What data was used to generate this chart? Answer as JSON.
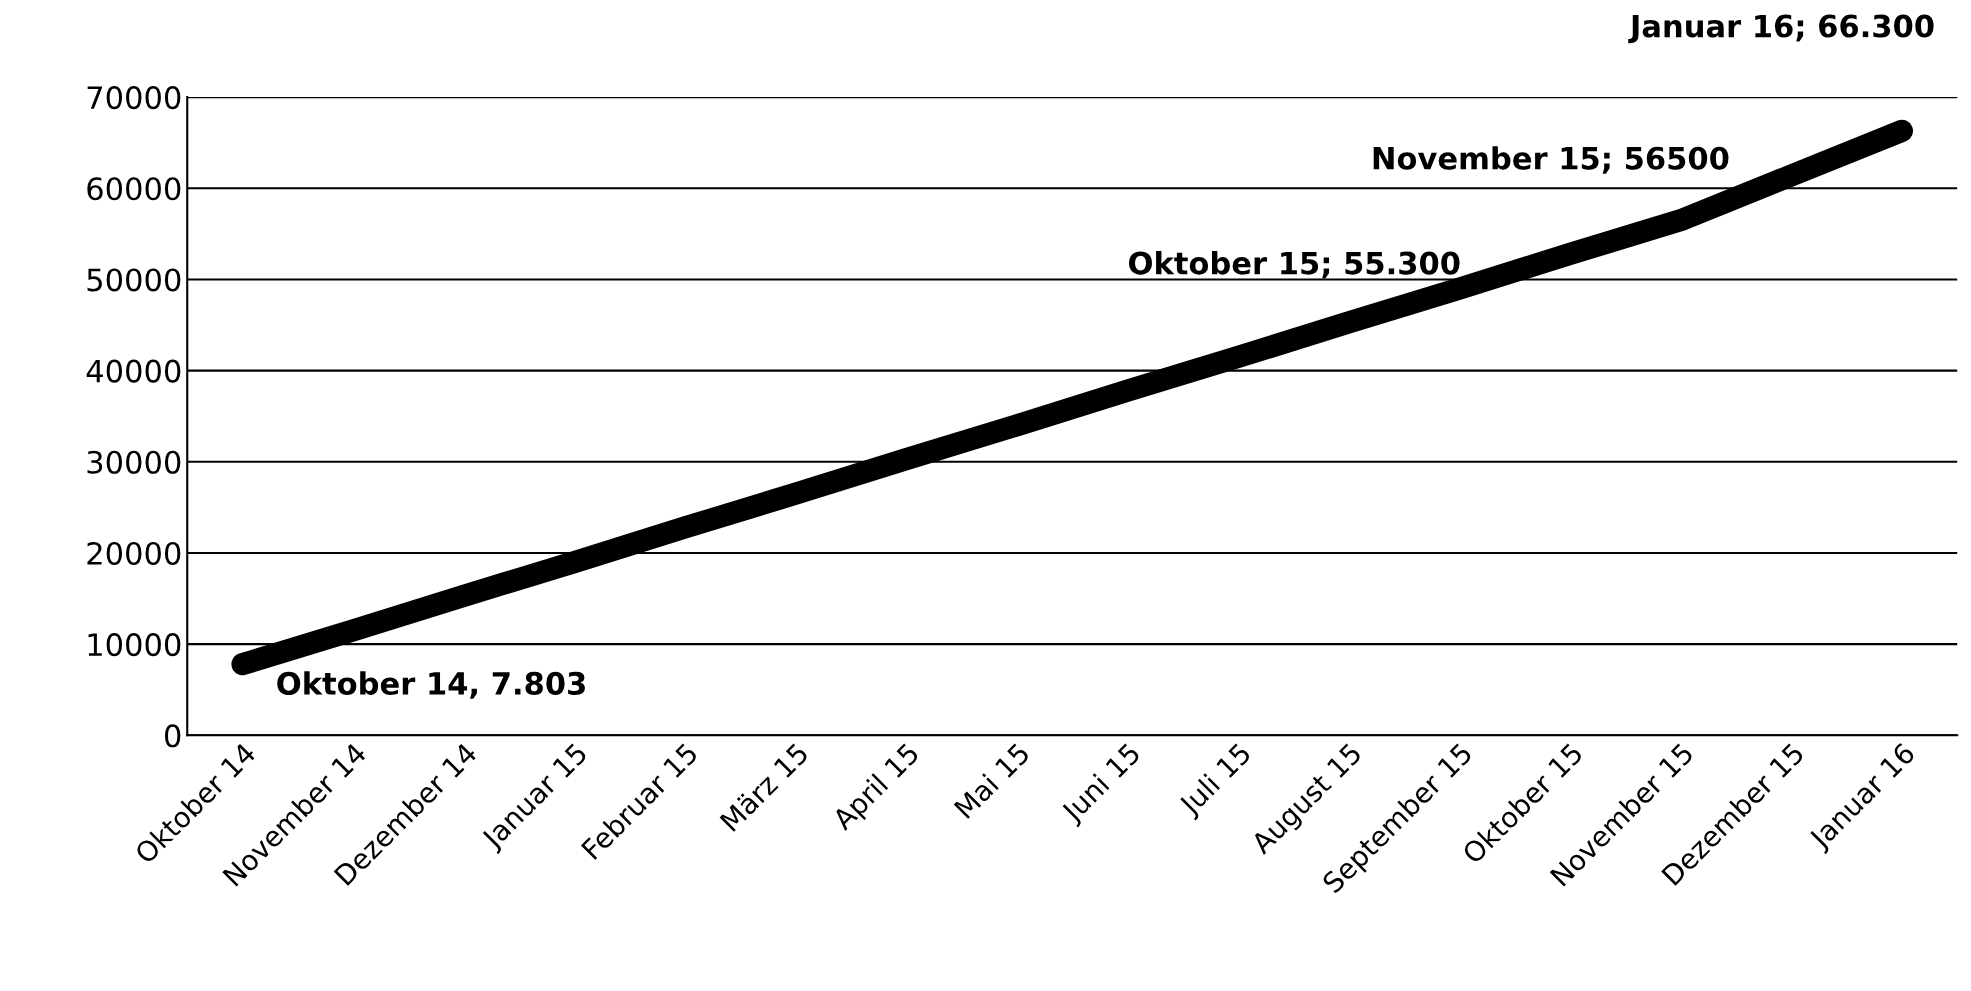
{
  "chart_data": {
    "type": "line",
    "categories": [
      "Oktober 14",
      "November 14",
      "Dezember 14",
      "Januar 15",
      "Februar 15",
      "März 15",
      "April 15",
      "Mai 15",
      "Juni 15",
      "Juli 15",
      "August 15",
      "September 15",
      "Oktober 15",
      "November 15",
      "Dezember 15",
      "Januar 16"
    ],
    "series": [
      {
        "color": "#000000",
        "values": [
          7803,
          11500,
          15300,
          19000,
          22800,
          26500,
          30300,
          34000,
          37800,
          41500,
          45300,
          49000,
          52800,
          56500,
          61400,
          66300
        ]
      }
    ],
    "ylim": [
      0,
      70000
    ],
    "yticks": [
      0,
      10000,
      20000,
      30000,
      40000,
      50000,
      60000,
      70000
    ],
    "grid": "y",
    "legend": false,
    "line_style": "solid",
    "annotations": [
      "Oktober 14, 7.803",
      "Oktober 15; 55.300",
      "November 15; 56500",
      "Januar 16; 66.300"
    ]
  }
}
